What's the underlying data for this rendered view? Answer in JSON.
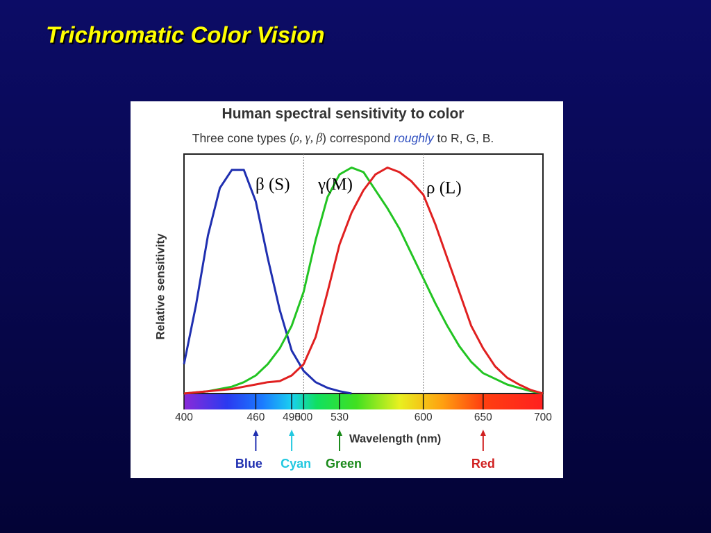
{
  "slide_title": "Trichromatic Color Vision",
  "chart_data": {
    "type": "line",
    "title": "Human spectral sensitivity to color",
    "subtitle_parts": [
      "Three cone types (",
      "ρ, γ, β",
      ") correspond ",
      "roughly",
      " to R, G, B."
    ],
    "y_label": "Relative sensitivity",
    "x_label": "Wavelength (nm)",
    "x": [
      400,
      410,
      420,
      430,
      440,
      450,
      460,
      470,
      480,
      490,
      500,
      510,
      520,
      530,
      540,
      550,
      560,
      570,
      580,
      590,
      600,
      610,
      620,
      630,
      640,
      650,
      660,
      670,
      680,
      690,
      700
    ],
    "series": [
      {
        "name": "β (S)",
        "color": "#1f2fb0",
        "values": [
          0.13,
          0.39,
          0.7,
          0.91,
          0.99,
          0.99,
          0.85,
          0.6,
          0.37,
          0.19,
          0.1,
          0.05,
          0.025,
          0.01,
          0,
          null,
          null,
          null,
          null,
          null,
          null,
          null,
          null,
          null,
          null,
          null,
          null,
          null,
          null,
          null,
          null
        ]
      },
      {
        "name": "γ(M)",
        "color": "#22c422",
        "values": [
          0,
          0.005,
          0.01,
          0.02,
          0.03,
          0.05,
          0.08,
          0.13,
          0.2,
          0.3,
          0.45,
          0.68,
          0.87,
          0.97,
          1.0,
          0.98,
          0.9,
          0.82,
          0.73,
          0.62,
          0.51,
          0.4,
          0.3,
          0.21,
          0.14,
          0.09,
          0.065,
          0.04,
          0.025,
          0.01,
          0
        ]
      },
      {
        "name": "ρ (L)",
        "color": "#e02020",
        "values": [
          0,
          0.005,
          0.01,
          0.015,
          0.02,
          0.03,
          0.04,
          0.05,
          0.055,
          0.08,
          0.13,
          0.25,
          0.45,
          0.66,
          0.8,
          0.9,
          0.97,
          1.0,
          0.98,
          0.94,
          0.88,
          0.75,
          0.6,
          0.45,
          0.3,
          0.2,
          0.12,
          0.07,
          0.04,
          0.015,
          0
        ]
      }
    ],
    "xlim": [
      400,
      700
    ],
    "ylim": [
      0,
      1.06
    ],
    "xticks": [
      400,
      460,
      490,
      500,
      530,
      600,
      650,
      700
    ],
    "dotted_lines": [
      500,
      600
    ],
    "markers": [
      {
        "label": "Blue",
        "x": 460,
        "color": "#1f2fb0"
      },
      {
        "label": "Cyan",
        "x": 490,
        "color": "#22c8e0"
      },
      {
        "label": "Green",
        "x": 530,
        "color": "#1a8a1a"
      },
      {
        "label": "Red",
        "x": 650,
        "color": "#d02020"
      }
    ]
  }
}
